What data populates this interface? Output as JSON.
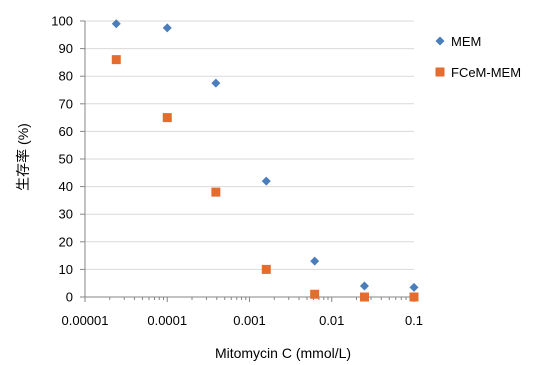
{
  "chart_data": {
    "type": "scatter",
    "xscale": "log",
    "xlim": [
      1e-05,
      0.1
    ],
    "ylim": [
      0,
      100
    ],
    "x_ticks": [
      1e-05,
      0.0001,
      0.001,
      0.01,
      0.1
    ],
    "x_tick_labels": [
      "0.00001",
      "0.0001",
      "0.001",
      "0.01",
      "0.1"
    ],
    "y_ticks": [
      0,
      10,
      20,
      30,
      40,
      50,
      60,
      70,
      80,
      90,
      100
    ],
    "y_tick_labels": [
      "0",
      "10",
      "20",
      "30",
      "40",
      "50",
      "60",
      "70",
      "80",
      "90",
      "100"
    ],
    "xlabel": "Mitomycin C (mmol/L)",
    "ylabel": "生存率 (%)",
    "grid": {
      "horizontal": true,
      "vertical": false
    },
    "legend_position": "right",
    "series": [
      {
        "name": "MEM",
        "marker": "diamond",
        "color": "#4a7ebb",
        "x": [
          2.4e-05,
          0.0001,
          0.00039,
          0.0016,
          0.0062,
          0.025,
          0.1
        ],
        "y": [
          99,
          97.5,
          77.5,
          42,
          13,
          4,
          3.5
        ]
      },
      {
        "name": "FCeM-MEM",
        "marker": "square",
        "color": "#e46c2e",
        "x": [
          2.4e-05,
          0.0001,
          0.00039,
          0.0016,
          0.0062,
          0.025,
          0.1
        ],
        "y": [
          86,
          65,
          38,
          10,
          1,
          0,
          0
        ]
      }
    ]
  }
}
